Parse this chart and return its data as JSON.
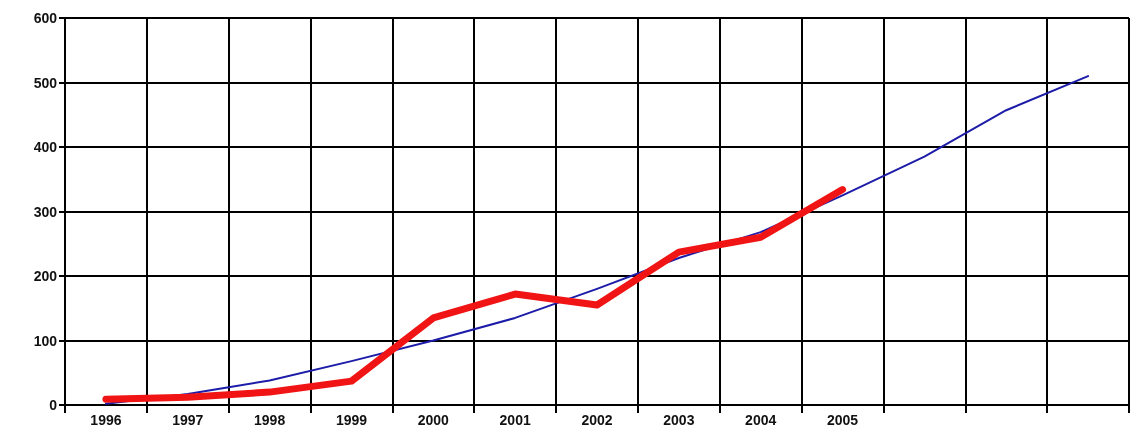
{
  "chart_data": {
    "type": "line",
    "categories": [
      "1996",
      "1997",
      "1998",
      "1999",
      "2000",
      "2001",
      "2002",
      "2003",
      "2004",
      "2005",
      null,
      null,
      null
    ],
    "series": [
      {
        "color": "#1c1ca8",
        "values": [
          2,
          17,
          38,
          68,
          100,
          135,
          180,
          228,
          268,
          325,
          385,
          457,
          510
        ]
      },
      {
        "color": "#f01414",
        "values": [
          9,
          12,
          20,
          37,
          135,
          172,
          155,
          237,
          260,
          334,
          null,
          null,
          null
        ]
      }
    ],
    "ylim": [
      0,
      600
    ],
    "yticks": [
      0,
      100,
      200,
      300,
      400,
      500,
      600
    ],
    "grid": true,
    "marker": "none",
    "line_style": "solid"
  }
}
